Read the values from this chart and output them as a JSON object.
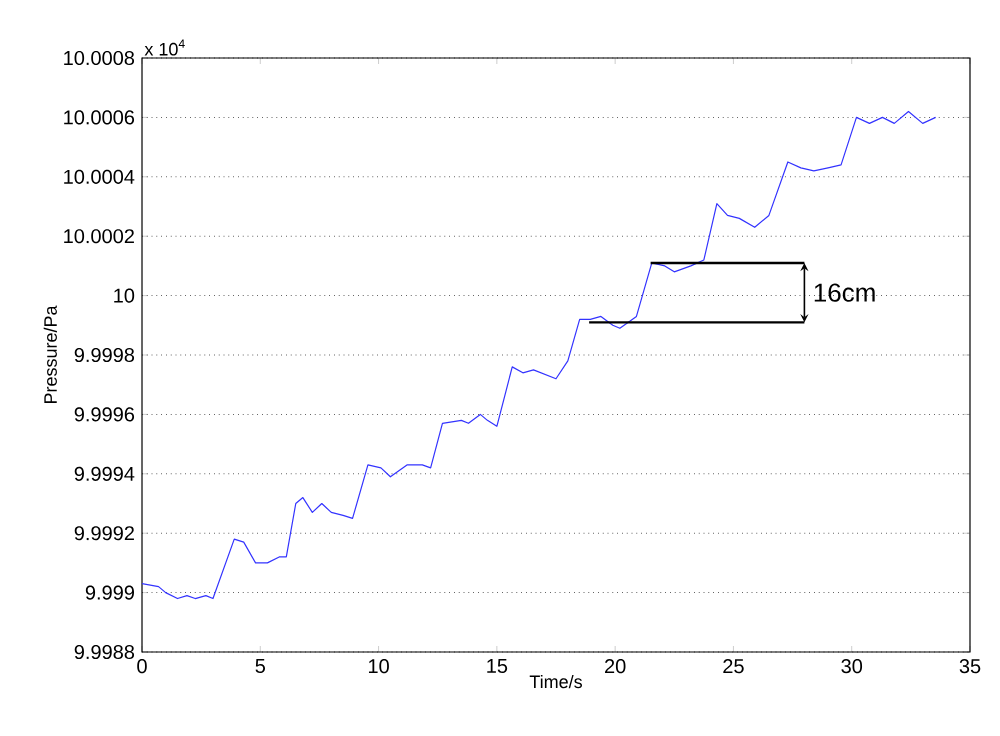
{
  "chart_data": {
    "type": "line",
    "xlabel": "Time/s",
    "ylabel": "Pressure/Pa",
    "xlim": [
      0,
      35
    ],
    "xticks": [
      0,
      5,
      10,
      15,
      20,
      25,
      30,
      35
    ],
    "ylim": [
      9.9988,
      10.0008
    ],
    "yticks": [
      9.9988,
      9.999,
      9.9992,
      9.9994,
      9.9996,
      9.9998,
      10,
      10.0002,
      10.0004,
      10.0006,
      10.0008
    ],
    "grid": "y",
    "series": [
      {
        "color": "#3333ff",
        "x": [
          0,
          0.7,
          1.0,
          1.5,
          1.9,
          2.25,
          2.7,
          3.0,
          3.9,
          4.3,
          4.8,
          5.3,
          5.8,
          6.1,
          6.5,
          6.8,
          7.2,
          7.6,
          8.0,
          8.5,
          8.9,
          9.55,
          10.1,
          10.5,
          11.2,
          11.85,
          12.2,
          12.7,
          13.5,
          13.8,
          14.3,
          14.6,
          15.0,
          15.65,
          16.1,
          16.55,
          17.5,
          18.0,
          18.5,
          18.95,
          19.4,
          19.9,
          20.2,
          20.9,
          21.55,
          22.1,
          22.5,
          23.2,
          23.75,
          24.3,
          24.75,
          25.25,
          25.9,
          26.5,
          27.3,
          27.85,
          28.4,
          29.0,
          29.55,
          30.2,
          30.75,
          31.3,
          31.8,
          32.4,
          33.0,
          33.55
        ],
        "values": [
          9.99903,
          9.99902,
          9.999,
          9.99898,
          9.99899,
          9.99898,
          9.99899,
          9.99898,
          9.99918,
          9.99917,
          9.9991,
          9.9991,
          9.99912,
          9.99912,
          9.9993,
          9.99932,
          9.99927,
          9.9993,
          9.99927,
          9.99926,
          9.99925,
          9.99943,
          9.99942,
          9.99939,
          9.99943,
          9.99943,
          9.99942,
          9.99957,
          9.99958,
          9.99957,
          9.9996,
          9.99958,
          9.99956,
          9.99976,
          9.99974,
          9.99975,
          9.99972,
          9.99978,
          9.99992,
          9.99992,
          9.99993,
          9.9999,
          9.99989,
          9.99993,
          10.00011,
          10.0001,
          10.00008,
          10.0001,
          10.00012,
          10.00031,
          10.00027,
          10.00026,
          10.00023,
          10.00027,
          10.00045,
          10.00043,
          10.00042,
          10.00043,
          10.00044,
          10.0006,
          10.00058,
          10.0006,
          10.00058,
          10.00062,
          10.00058,
          10.0006
        ]
      },
      {
        "type": "line",
        "color": "#000000",
        "x": [
          21.5,
          28.0
        ],
        "values": [
          10.00011,
          10.00011
        ]
      },
      {
        "type": "line",
        "color": "#000000",
        "x": [
          18.9,
          28.0
        ],
        "values": [
          9.99991,
          9.99991
        ]
      }
    ],
    "annotations": [
      "x 10$^{4}$",
      "16cm"
    ]
  }
}
